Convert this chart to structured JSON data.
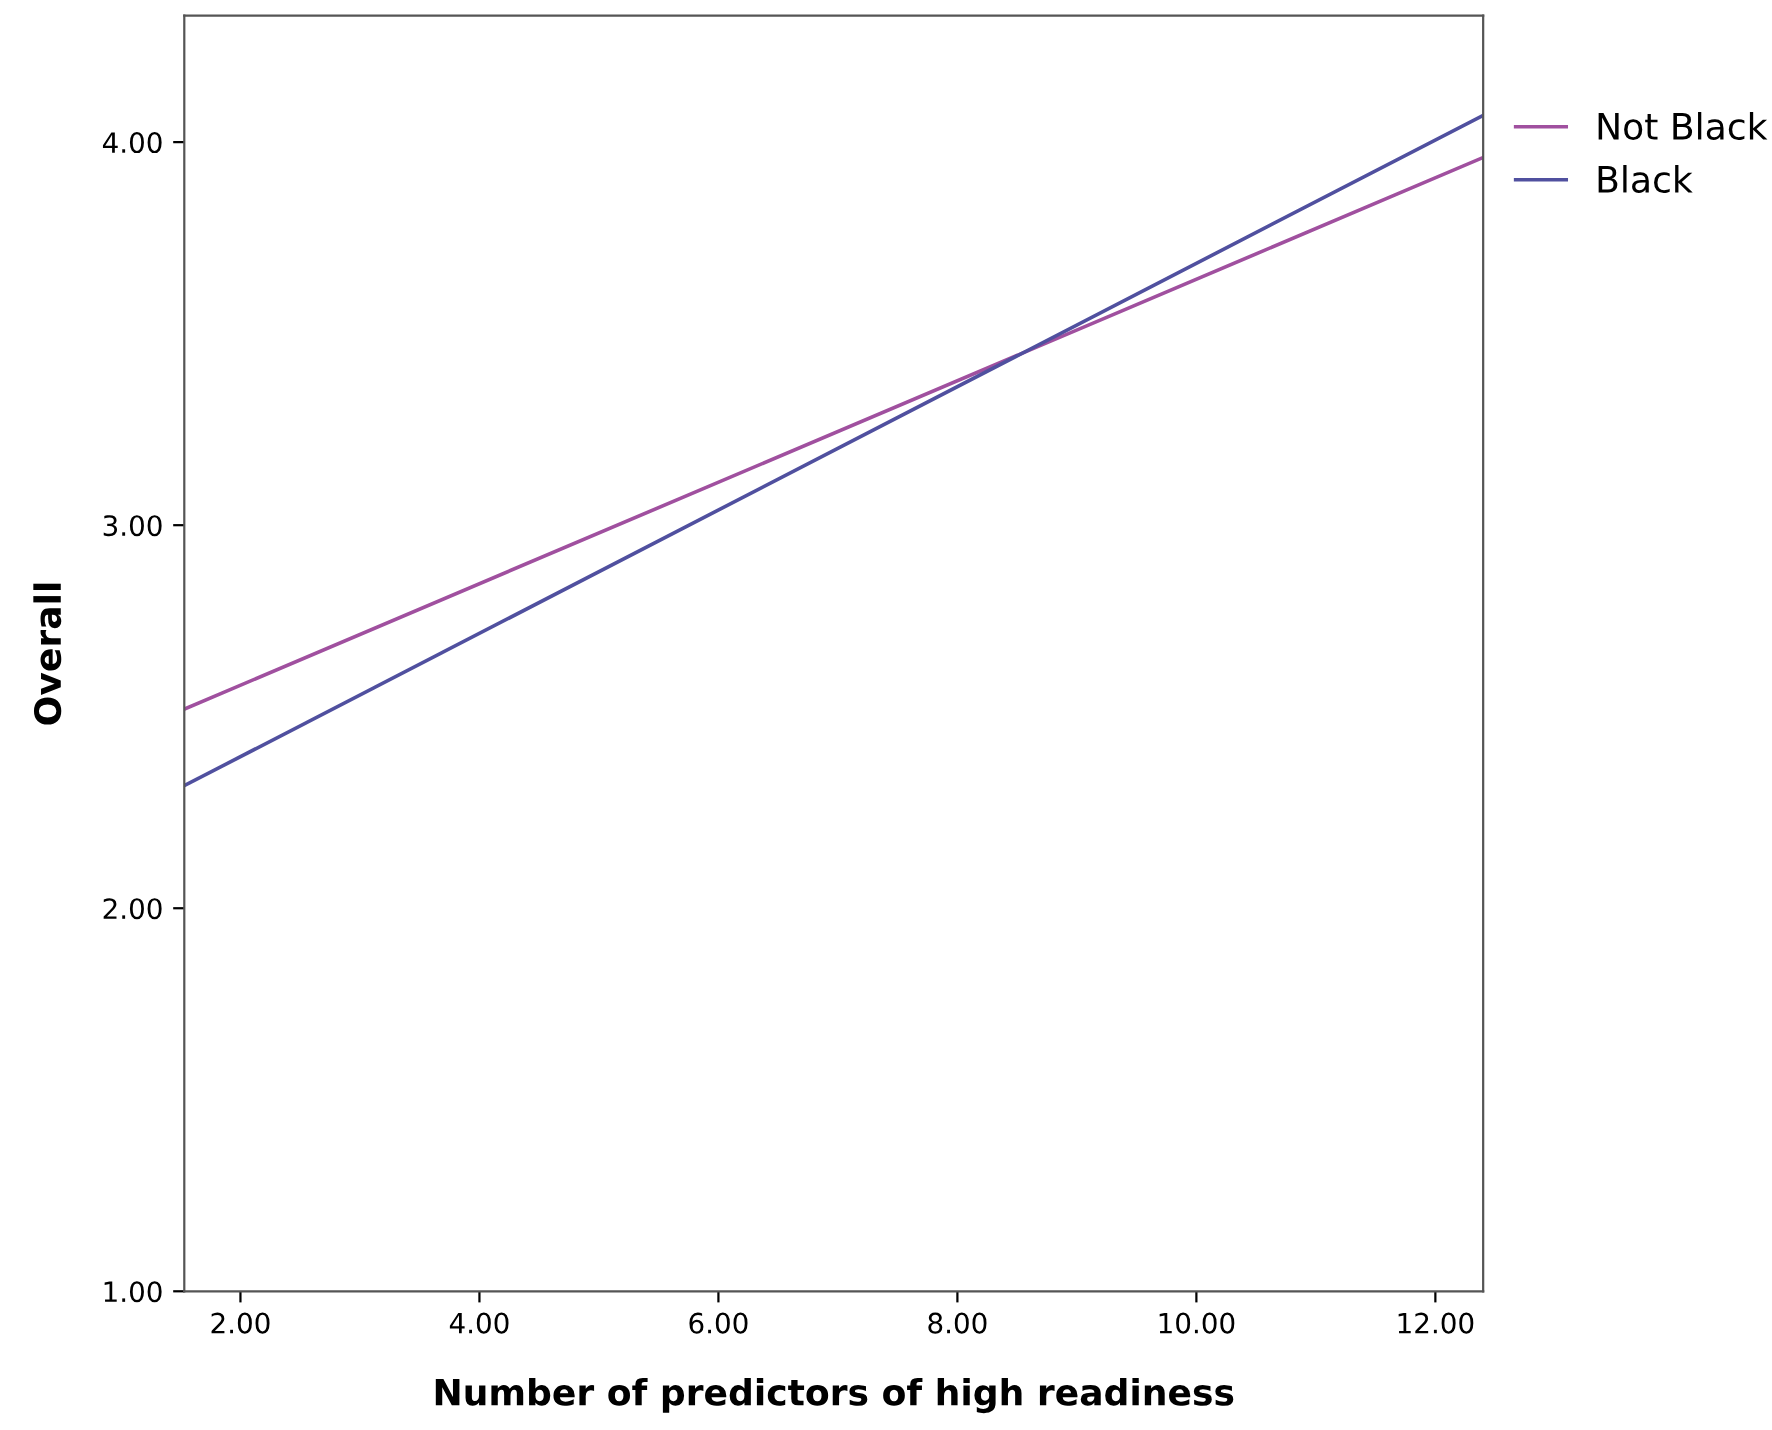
{
  "chart_data": {
    "type": "line",
    "xlabel": "Number of predictors of high readiness",
    "ylabel": "Overall",
    "xlim": [
      1.53,
      12.4
    ],
    "ylim": [
      1.0,
      4.33
    ],
    "xticks": [
      {
        "value": 2,
        "label": "2.00"
      },
      {
        "value": 4,
        "label": "4.00"
      },
      {
        "value": 6,
        "label": "6.00"
      },
      {
        "value": 8,
        "label": "8.00"
      },
      {
        "value": 10,
        "label": "10.00"
      },
      {
        "value": 12,
        "label": "12.00"
      }
    ],
    "yticks": [
      {
        "value": 1,
        "label": "1.00"
      },
      {
        "value": 2,
        "label": "2.00"
      },
      {
        "value": 3,
        "label": "3.00"
      },
      {
        "value": 4,
        "label": "4.00"
      }
    ],
    "x": [
      1.53,
      12.4
    ],
    "series": [
      {
        "name": "Not Black",
        "color": "#a0509f",
        "values": [
          2.52,
          3.96
        ]
      },
      {
        "name": "Black",
        "color": "#50509f",
        "values": [
          2.32,
          4.07
        ]
      }
    ],
    "legend": "top right",
    "grid": false,
    "marker": "none",
    "line_style": "solid"
  }
}
